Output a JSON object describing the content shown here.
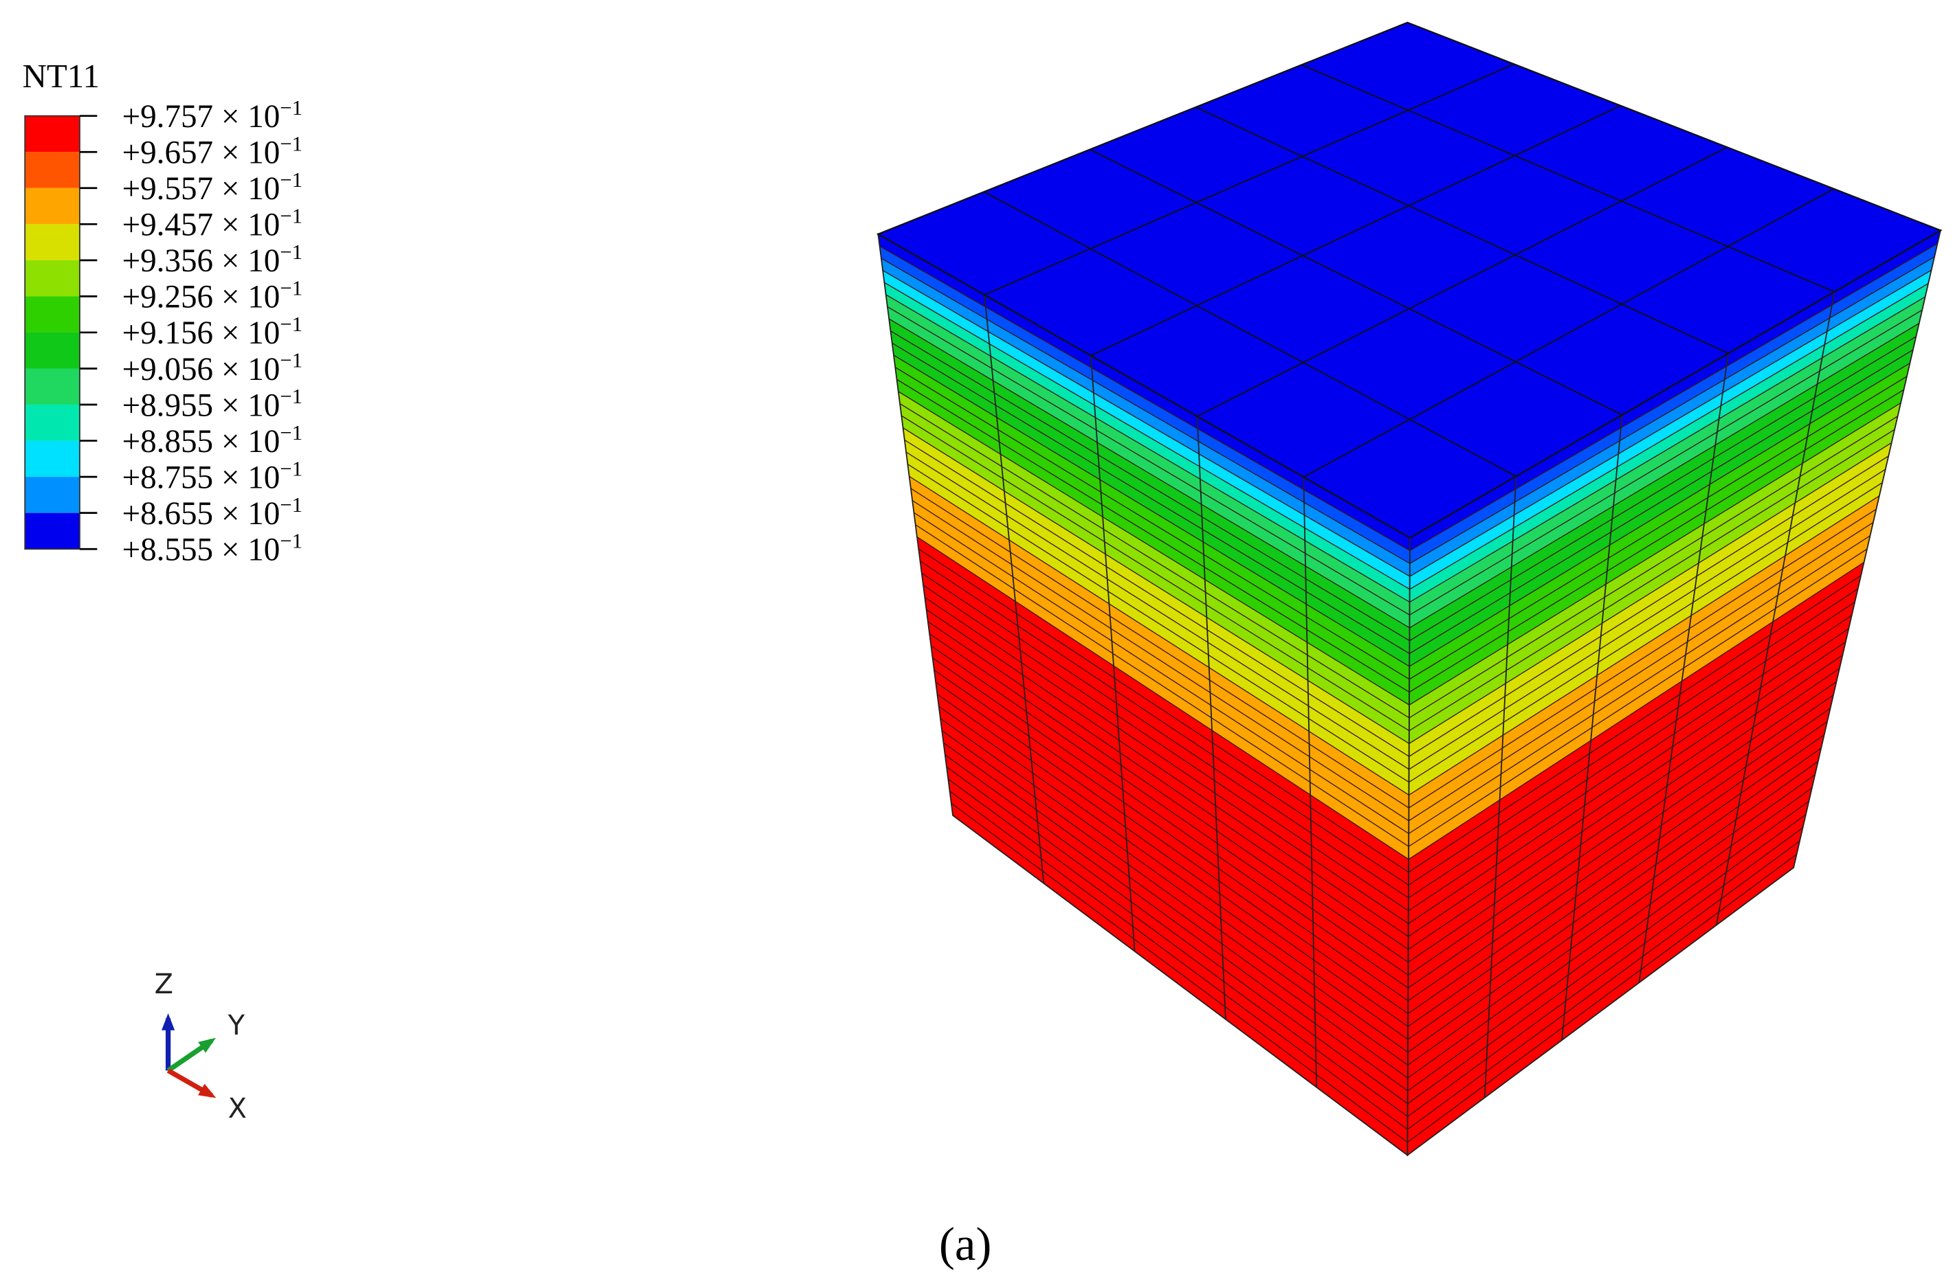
{
  "legend": {
    "title": "NT11",
    "labels": [
      {
        "mantissa": "+9.757 × 10",
        "exponent": "−1"
      },
      {
        "mantissa": "+9.657 × 10",
        "exponent": "−1"
      },
      {
        "mantissa": "+9.557 × 10",
        "exponent": "−1"
      },
      {
        "mantissa": "+9.457 × 10",
        "exponent": "−1"
      },
      {
        "mantissa": "+9.356 × 10",
        "exponent": "−1"
      },
      {
        "mantissa": "+9.256 × 10",
        "exponent": "−1"
      },
      {
        "mantissa": "+9.156 × 10",
        "exponent": "−1"
      },
      {
        "mantissa": "+9.056 × 10",
        "exponent": "−1"
      },
      {
        "mantissa": "+8.955 × 10",
        "exponent": "−1"
      },
      {
        "mantissa": "+8.855 × 10",
        "exponent": "−1"
      },
      {
        "mantissa": "+8.755 × 10",
        "exponent": "−1"
      },
      {
        "mantissa": "+8.655 × 10",
        "exponent": "−1"
      },
      {
        "mantissa": "+8.555 × 10",
        "exponent": "−1"
      }
    ]
  },
  "triad": {
    "z": "Z",
    "y": "Y",
    "x": "X"
  },
  "caption": "(a)"
}
